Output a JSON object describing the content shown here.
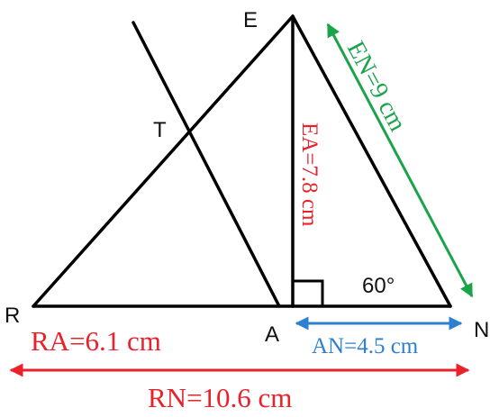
{
  "points": {
    "E": "E",
    "T": "T",
    "R": "R",
    "A": "A",
    "N": "N"
  },
  "angle_label": "60°",
  "measurements": {
    "RA": "RA=6.1 cm",
    "AN": "AN=4.5 cm",
    "RN": "RN=10.6 cm",
    "EA": "EA=7.8 cm",
    "EN": "EN=9 cm"
  },
  "colors": {
    "lines": "#000000",
    "red": "#e8212b",
    "green": "#1aa34a",
    "blue": "#2f7fd0"
  }
}
